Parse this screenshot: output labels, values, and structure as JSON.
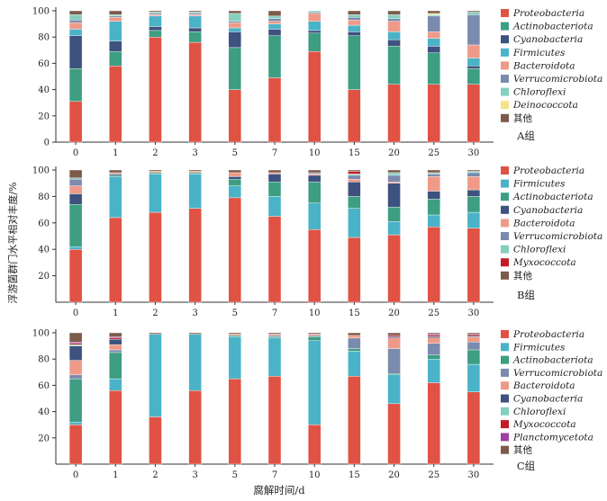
{
  "figure": {
    "xlabel": "腐解时间/d",
    "ylabel": "浮游菌群门水平相对丰度/%"
  },
  "chart_data": [
    {
      "type": "bar",
      "panel_label": "A组",
      "categories": [
        "0",
        "1",
        "2",
        "3",
        "5",
        "7",
        "10",
        "15",
        "20",
        "25",
        "30"
      ],
      "ylim": [
        0,
        100
      ],
      "yticks": [
        "0",
        "20",
        "40",
        "60",
        "80",
        "100"
      ],
      "series": [
        {
          "name": "Proteobacteria",
          "color": "#e05244",
          "values": [
            31,
            58,
            80,
            76,
            40,
            49,
            69,
            40,
            44,
            44,
            44
          ]
        },
        {
          "name": "Actinobacteriota",
          "color": "#3d9e82",
          "values": [
            25,
            11,
            5,
            8,
            32,
            32,
            14,
            41,
            29,
            24,
            12
          ]
        },
        {
          "name": "Cyanobacteria",
          "color": "#3e527f",
          "values": [
            25,
            8,
            3,
            3,
            12,
            5,
            2,
            3,
            5,
            5,
            2
          ]
        },
        {
          "name": "Firmicutes",
          "color": "#4ab3c8",
          "values": [
            5,
            15,
            8,
            9,
            3,
            4,
            7,
            5,
            6,
            6,
            6
          ]
        },
        {
          "name": "Bacteroidota",
          "color": "#ef9a88",
          "values": [
            5,
            3,
            1,
            1,
            4,
            2,
            6,
            4,
            8,
            5,
            10
          ]
        },
        {
          "name": "Verrucomicrobiota",
          "color": "#7b8bae",
          "values": [
            2,
            1,
            1,
            1,
            1,
            2,
            1,
            2,
            2,
            12,
            23
          ]
        },
        {
          "name": "Chloroflexi",
          "color": "#86cfbf",
          "values": [
            4,
            1,
            1,
            1,
            6,
            2,
            1,
            2,
            3,
            1,
            2
          ]
        },
        {
          "name": "Deinococcota",
          "color": "#f3e48a",
          "values": [
            0,
            0,
            0,
            0,
            0,
            0,
            0,
            0,
            0,
            1,
            0
          ]
        },
        {
          "name": "其他",
          "color": "#7c5b4a",
          "values": [
            3,
            3,
            1,
            1,
            2,
            4,
            0,
            3,
            3,
            2,
            1
          ]
        }
      ]
    },
    {
      "type": "bar",
      "panel_label": "B组",
      "categories": [
        "0",
        "1",
        "2",
        "3",
        "5",
        "7",
        "10",
        "15",
        "20",
        "25",
        "30"
      ],
      "ylim": [
        0,
        100
      ],
      "yticks": [
        "20",
        "40",
        "60",
        "80",
        "100"
      ],
      "series": [
        {
          "name": "Proteobacteria",
          "color": "#e05244",
          "values": [
            40,
            64,
            68,
            71,
            79,
            65,
            55,
            49,
            51,
            57,
            56
          ]
        },
        {
          "name": "Firmicutes",
          "color": "#4ab3c8",
          "values": [
            2,
            31,
            29,
            26,
            9,
            15,
            20,
            22,
            10,
            9,
            12
          ]
        },
        {
          "name": "Actinobacteriota",
          "color": "#3d9e82",
          "values": [
            32,
            1,
            1,
            1,
            5,
            11,
            16,
            9,
            11,
            12,
            12
          ]
        },
        {
          "name": "Cyanobacteria",
          "color": "#3e527f",
          "values": [
            8,
            1,
            0,
            0,
            2,
            6,
            5,
            11,
            18,
            6,
            5
          ]
        },
        {
          "name": "Bacteroidota",
          "color": "#ef9a88",
          "values": [
            6,
            1,
            1,
            1,
            3,
            1,
            1,
            2,
            1,
            11,
            10
          ]
        },
        {
          "name": "Verrucomicrobiota",
          "color": "#7b8bae",
          "values": [
            5,
            0,
            0,
            0,
            0,
            0,
            1,
            3,
            5,
            2,
            3
          ]
        },
        {
          "name": "Chloroflexi",
          "color": "#86cfbf",
          "values": [
            1,
            0,
            0,
            0,
            0,
            0,
            0,
            1,
            2,
            1,
            1
          ]
        },
        {
          "name": "Myxococcota",
          "color": "#c21d26",
          "values": [
            0,
            0,
            0,
            0,
            0,
            0,
            0,
            2,
            0,
            0,
            0
          ]
        },
        {
          "name": "其他",
          "color": "#7c5b4a",
          "values": [
            6,
            2,
            1,
            1,
            2,
            2,
            2,
            1,
            2,
            2,
            1
          ]
        }
      ]
    },
    {
      "type": "bar",
      "panel_label": "C组",
      "categories": [
        "0",
        "1",
        "2",
        "3",
        "5",
        "7",
        "10",
        "15",
        "20",
        "25",
        "30"
      ],
      "ylim": [
        0,
        100
      ],
      "yticks": [
        "20",
        "40",
        "60",
        "80",
        "100"
      ],
      "series": [
        {
          "name": "Proteobacteria",
          "color": "#e05244",
          "values": [
            30,
            56,
            36,
            56,
            65,
            67,
            30,
            67,
            46,
            62,
            55
          ]
        },
        {
          "name": "Firmicutes",
          "color": "#4ab3c8",
          "values": [
            2,
            9,
            63,
            43,
            32,
            29,
            64,
            19,
            22,
            18,
            21
          ]
        },
        {
          "name": "Actinobacteriota",
          "color": "#3d9e82",
          "values": [
            33,
            20,
            0,
            0,
            1,
            1,
            3,
            2,
            1,
            3,
            11
          ]
        },
        {
          "name": "Verrucomicrobiota",
          "color": "#7b8bae",
          "values": [
            3,
            2,
            0,
            0,
            0,
            1,
            1,
            8,
            19,
            9,
            6
          ]
        },
        {
          "name": "Bacteroidota",
          "color": "#ef9a88",
          "values": [
            11,
            4,
            0,
            0,
            1,
            1,
            1,
            2,
            8,
            4,
            4
          ]
        },
        {
          "name": "Cyanobacteria",
          "color": "#3e527f",
          "values": [
            11,
            4,
            0,
            0,
            0,
            0,
            0,
            0,
            1,
            1,
            1
          ]
        },
        {
          "name": "Chloroflexi",
          "color": "#86cfbf",
          "values": [
            1,
            0,
            0,
            0,
            0,
            0,
            0,
            0,
            0,
            0,
            0
          ]
        },
        {
          "name": "Myxococcota",
          "color": "#c21d26",
          "values": [
            1,
            1,
            0,
            0,
            0,
            0,
            0,
            0,
            1,
            1,
            1
          ]
        },
        {
          "name": "Planctomycetota",
          "color": "#9e3fa1",
          "values": [
            1,
            1,
            0,
            0,
            0,
            0,
            0,
            0,
            0,
            1,
            0
          ]
        },
        {
          "name": "其他",
          "color": "#7c5b4a",
          "values": [
            7,
            3,
            1,
            1,
            1,
            1,
            1,
            2,
            2,
            1,
            1
          ]
        }
      ]
    }
  ]
}
